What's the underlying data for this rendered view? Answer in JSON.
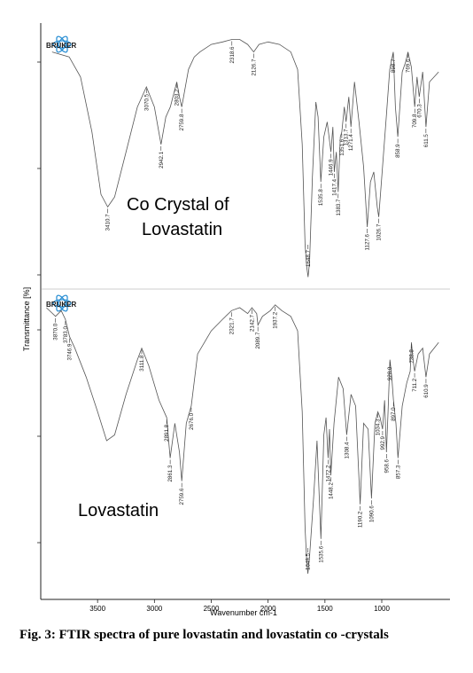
{
  "chart_data": {
    "type": "line",
    "xlabel": "Wavenumber cm-1",
    "ylabel": "Transmittance [%]",
    "xlim": [
      4000,
      400
    ],
    "x_reversed": true,
    "xticks": [
      3500,
      3000,
      2500,
      2000,
      1500,
      1000
    ],
    "grid": false,
    "logo": "BRUKER",
    "panels": [
      {
        "name": "Co Crystal of Lovastatin",
        "label_lines": [
          "Co Crystal of",
          "Lovastatin"
        ],
        "ylim": [
          0,
          100
        ],
        "peaks": [
          {
            "x": 3410.7,
            "label": "3410.7"
          },
          {
            "x": 3070.5,
            "label": "3070.5"
          },
          {
            "x": 2942.1,
            "label": "2942.1"
          },
          {
            "x": 2803.2,
            "label": "2803.2"
          },
          {
            "x": 2759.8,
            "label": "2759.8"
          },
          {
            "x": 2318.6,
            "label": "2318.6"
          },
          {
            "x": 2126.7,
            "label": "2126.7"
          },
          {
            "x": 1648.7,
            "label": "1648.7"
          },
          {
            "x": 1535.8,
            "label": "1535.8"
          },
          {
            "x": 1446.9,
            "label": "1446.9"
          },
          {
            "x": 1417.4,
            "label": "1417.4"
          },
          {
            "x": 1383.7,
            "label": "1383.7"
          },
          {
            "x": 1351.6,
            "label": "1351.6"
          },
          {
            "x": 1313.7,
            "label": "1313.7"
          },
          {
            "x": 1271.4,
            "label": "1271.4"
          },
          {
            "x": 1127.6,
            "label": "1127.6"
          },
          {
            "x": 1026.7,
            "label": "1026.7"
          },
          {
            "x": 898.7,
            "label": "898.7"
          },
          {
            "x": 858.9,
            "label": "858.9"
          },
          {
            "x": 769.6,
            "label": "769.6"
          },
          {
            "x": 709.8,
            "label": "709.8"
          },
          {
            "x": 670.3,
            "label": "670.3"
          },
          {
            "x": 611.5,
            "label": "611.5"
          }
        ],
        "x": [
          3900,
          3750,
          3650,
          3550,
          3470,
          3410.7,
          3350,
          3250,
          3150,
          3070.5,
          3000,
          2942.1,
          2900,
          2860,
          2803.2,
          2780,
          2759.8,
          2700,
          2650,
          2600,
          2500,
          2400,
          2318.6,
          2250,
          2180,
          2126.7,
          2080,
          2000,
          1900,
          1800,
          1740,
          1700,
          1675,
          1660,
          1648.7,
          1635,
          1610,
          1580,
          1560,
          1535.8,
          1510,
          1480,
          1446.9,
          1430,
          1417.4,
          1400,
          1383.7,
          1365,
          1351.6,
          1330,
          1313.7,
          1290,
          1271.4,
          1240,
          1200,
          1160,
          1127.6,
          1100,
          1070,
          1040,
          1026.7,
          1000,
          960,
          930,
          898.7,
          880,
          858.9,
          820,
          790,
          769.6,
          740,
          709.8,
          690,
          670.3,
          640,
          611.5,
          580,
          500
        ],
        "y": [
          92,
          90,
          82,
          60,
          35,
          30,
          34,
          52,
          70,
          78,
          70,
          55,
          66,
          70,
          80,
          74,
          70,
          85,
          90,
          92,
          95,
          96,
          97,
          97,
          95,
          92,
          95,
          96,
          95,
          92,
          85,
          55,
          15,
          6,
          2,
          8,
          42,
          72,
          66,
          40,
          58,
          64,
          52,
          62,
          44,
          52,
          36,
          58,
          60,
          70,
          64,
          74,
          62,
          80,
          64,
          46,
          22,
          40,
          44,
          30,
          26,
          42,
          66,
          85,
          92,
          70,
          58,
          84,
          88,
          92,
          86,
          70,
          82,
          74,
          84,
          62,
          80,
          84
        ]
      },
      {
        "name": "Lovastatin",
        "label_lines": [
          "Lovastatin"
        ],
        "ylim": [
          0,
          100
        ],
        "peaks": [
          {
            "x": 3870.0,
            "label": "3870.0"
          },
          {
            "x": 3783.0,
            "label": "3783.0"
          },
          {
            "x": 3746.9,
            "label": "3746.9"
          },
          {
            "x": 3111.8,
            "label": "3111.8"
          },
          {
            "x": 2891.8,
            "label": "2891.8"
          },
          {
            "x": 2861.3,
            "label": "2861.3"
          },
          {
            "x": 2759.6,
            "label": "2759.6"
          },
          {
            "x": 2676.0,
            "label": "2676.0"
          },
          {
            "x": 2321.7,
            "label": "2321.7"
          },
          {
            "x": 2142.7,
            "label": "2142.7"
          },
          {
            "x": 2089.7,
            "label": "2089.7"
          },
          {
            "x": 1937.2,
            "label": "1937.2"
          },
          {
            "x": 1649.5,
            "label": "1649.5"
          },
          {
            "x": 1535.6,
            "label": "1535.6"
          },
          {
            "x": 1472.2,
            "label": "1472.2"
          },
          {
            "x": 1448.2,
            "label": "1448.2"
          },
          {
            "x": 1308.4,
            "label": "1308.4"
          },
          {
            "x": 1190.2,
            "label": "1190.2"
          },
          {
            "x": 1090.6,
            "label": "1090.6"
          },
          {
            "x": 1034.3,
            "label": "1034.3"
          },
          {
            "x": 992.9,
            "label": "992.9"
          },
          {
            "x": 958.6,
            "label": "958.6"
          },
          {
            "x": 928.0,
            "label": "928.0"
          },
          {
            "x": 897.0,
            "label": "897.0"
          },
          {
            "x": 857.3,
            "label": "857.3"
          },
          {
            "x": 738.8,
            "label": "738.8"
          },
          {
            "x": 711.2,
            "label": "711.2"
          },
          {
            "x": 610.9,
            "label": "610.9"
          }
        ],
        "x": [
          3950,
          3870.0,
          3820,
          3783.0,
          3746.9,
          3700,
          3600,
          3500,
          3420,
          3350,
          3250,
          3150,
          3111.8,
          3050,
          2960,
          2891.8,
          2875,
          2861.3,
          2820,
          2780,
          2759.6,
          2720,
          2676.0,
          2620,
          2500,
          2400,
          2321.7,
          2250,
          2180,
          2142.7,
          2100,
          2089.7,
          2050,
          1980,
          1937.2,
          1880,
          1800,
          1740,
          1700,
          1675,
          1660,
          1649.5,
          1635,
          1600,
          1570,
          1535.6,
          1510,
          1490,
          1472.2,
          1460,
          1448.2,
          1420,
          1380,
          1340,
          1308.4,
          1270,
          1230,
          1190.2,
          1160,
          1120,
          1090.6,
          1060,
          1034.3,
          1015,
          992.9,
          975,
          958.6,
          945,
          928.0,
          912,
          897.0,
          875,
          857.3,
          820,
          780,
          750,
          738.8,
          725,
          711.2,
          680,
          640,
          610.9,
          580,
          500
        ],
        "y": [
          96,
          93,
          95,
          92,
          86,
          82,
          72,
          60,
          50,
          52,
          66,
          78,
          82,
          76,
          64,
          58,
          50,
          44,
          56,
          46,
          36,
          56,
          62,
          80,
          88,
          92,
          95,
          96,
          94,
          96,
          94,
          90,
          93,
          95,
          97,
          95,
          93,
          88,
          60,
          20,
          8,
          4,
          10,
          30,
          50,
          16,
          52,
          58,
          44,
          54,
          38,
          56,
          72,
          68,
          52,
          66,
          62,
          28,
          56,
          54,
          30,
          56,
          60,
          58,
          54,
          64,
          46,
          60,
          78,
          72,
          64,
          56,
          44,
          62,
          70,
          74,
          84,
          78,
          74,
          80,
          82,
          72,
          80,
          84
        ]
      }
    ]
  },
  "figure": {
    "ylabel": "Transmittance [%]",
    "xlabel": "Wavenumber cm-1",
    "logo_text": "BRUKER",
    "caption": "Fig. 3: FTIR spectra of pure lovastatin and lovastatin co -crystals"
  },
  "colors": {
    "spectrum": "#555555",
    "axis": "#222222",
    "text": "#000000",
    "logo_blue": "#2a8fd4",
    "logo_text": "#1a1a1a"
  }
}
